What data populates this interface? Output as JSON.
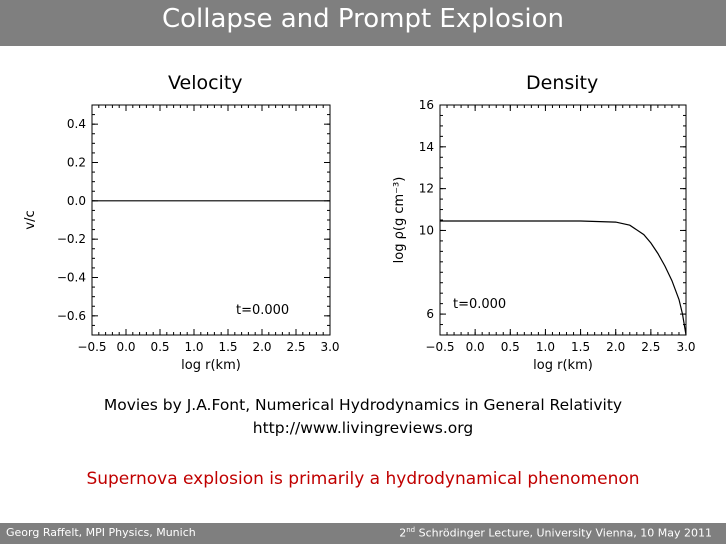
{
  "slide": {
    "title": "Collapse and Prompt Explosion",
    "caption_line1": "Movies by J.A.Font, Numerical Hydrodynamics in General Relativity",
    "caption_line2": "http://www.livingreviews.org",
    "headline": "Supernova explosion is primarily a hydrodynamical phenomenon",
    "footer_left": "Georg Raffelt, MPI Physics, Munich",
    "footer_right_ordinal": "2",
    "footer_right_sup": "nd",
    "footer_right_rest": " Schrödinger Lecture, University Vienna, 10 May 2011"
  },
  "colors": {
    "title_bar": "#7f7f7f",
    "headline": "#c00000"
  },
  "chart_data": [
    {
      "type": "line",
      "title": "Velocity",
      "xlabel": "log r(km)",
      "ylabel": "v/c",
      "xlim": [
        -0.5,
        3.0
      ],
      "ylim": [
        -0.7,
        0.5
      ],
      "x_ticks": [
        "-0.5",
        "0.0",
        "0.5",
        "1.0",
        "1.5",
        "2.0",
        "2.5",
        "3.0"
      ],
      "y_ticks": [
        "0.4",
        "0.2",
        "0.0",
        "-0.2",
        "-0.4",
        "-0.6"
      ],
      "annotation": "t=0.000",
      "series": [
        {
          "x": [
            -0.5,
            3.0
          ],
          "y": [
            0.0,
            0.0
          ]
        }
      ]
    },
    {
      "type": "line",
      "title": "Density",
      "xlabel": "log r(km)",
      "ylabel": "log ρ(g cm⁻³)",
      "xlim": [
        -0.5,
        3.0
      ],
      "ylim": [
        5.0,
        16.0
      ],
      "x_ticks": [
        "-0.5",
        "0.0",
        "0.5",
        "1.0",
        "1.5",
        "2.0",
        "2.5",
        "3.0"
      ],
      "y_ticks": [
        "16",
        "14",
        "12",
        "10",
        "6"
      ],
      "annotation": "t=0.000",
      "series": [
        {
          "x": [
            -0.5,
            1.5,
            2.0,
            2.2,
            2.4,
            2.5,
            2.6,
            2.7,
            2.8,
            2.9,
            2.95,
            3.0
          ],
          "y": [
            10.45,
            10.45,
            10.4,
            10.25,
            9.8,
            9.4,
            8.9,
            8.3,
            7.6,
            6.7,
            6.0,
            5.0
          ]
        }
      ]
    }
  ]
}
